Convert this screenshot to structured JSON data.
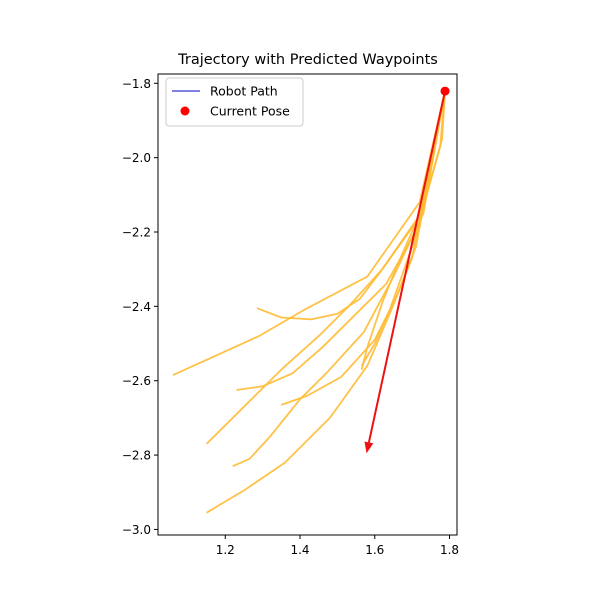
{
  "chart_data": {
    "type": "line",
    "title": "Trajectory with Predicted Waypoints",
    "xlabel": "",
    "ylabel": "",
    "xlim": [
      1.02,
      1.82
    ],
    "ylim": [
      -3.015,
      -1.775
    ],
    "xticks": [
      1.2,
      1.4,
      1.6,
      1.8
    ],
    "xtick_labels": [
      "1.2",
      "1.4",
      "1.6",
      "1.8"
    ],
    "yticks": [
      -1.8,
      -2.0,
      -2.2,
      -2.4,
      -2.6,
      -2.8,
      -3.0
    ],
    "ytick_labels": [
      "−1.8",
      "−2.0",
      "−2.2",
      "−2.4",
      "−2.6",
      "−2.8",
      "−3.0"
    ],
    "grid": false,
    "legend": {
      "placement": "top-left",
      "entries": [
        {
          "label": "Robot Path",
          "marker": "line",
          "color": "#0000cc"
        },
        {
          "label": "Current Pose",
          "marker": "dot",
          "color": "#ff0000"
        }
      ]
    },
    "current_pose": {
      "x": 1.788,
      "y": -1.821,
      "color": "#ff0000"
    },
    "heading_arrow": {
      "from": [
        1.788,
        -1.821
      ],
      "to": [
        1.578,
        -2.795
      ],
      "color": "#ee1111"
    },
    "waypoint_color": "#ffbb33",
    "predicted_waypoints": [
      {
        "points": [
          [
            1.788,
            -1.821
          ],
          [
            1.72,
            -2.12
          ],
          [
            1.58,
            -2.32
          ],
          [
            1.41,
            -2.41
          ],
          [
            1.29,
            -2.48
          ],
          [
            1.06,
            -2.585
          ]
        ]
      },
      {
        "points": [
          [
            1.788,
            -1.821
          ],
          [
            1.73,
            -2.14
          ],
          [
            1.62,
            -2.3
          ],
          [
            1.56,
            -2.38
          ],
          [
            1.5,
            -2.42
          ],
          [
            1.43,
            -2.435
          ],
          [
            1.35,
            -2.43
          ],
          [
            1.285,
            -2.405
          ]
        ]
      },
      {
        "points": [
          [
            1.788,
            -1.821
          ],
          [
            1.72,
            -2.16
          ],
          [
            1.62,
            -2.3
          ],
          [
            1.53,
            -2.4
          ],
          [
            1.45,
            -2.48
          ],
          [
            1.35,
            -2.57
          ],
          [
            1.25,
            -2.67
          ],
          [
            1.15,
            -2.77
          ]
        ]
      },
      {
        "points": [
          [
            1.788,
            -1.821
          ],
          [
            1.72,
            -2.18
          ],
          [
            1.63,
            -2.34
          ],
          [
            1.55,
            -2.42
          ],
          [
            1.46,
            -2.51
          ],
          [
            1.38,
            -2.58
          ],
          [
            1.3,
            -2.615
          ],
          [
            1.23,
            -2.625
          ]
        ]
      },
      {
        "points": [
          [
            1.788,
            -1.821
          ],
          [
            1.73,
            -2.15
          ],
          [
            1.65,
            -2.32
          ],
          [
            1.57,
            -2.47
          ],
          [
            1.47,
            -2.58
          ],
          [
            1.4,
            -2.65
          ],
          [
            1.32,
            -2.75
          ],
          [
            1.265,
            -2.81
          ],
          [
            1.22,
            -2.83
          ]
        ]
      },
      {
        "points": [
          [
            1.788,
            -1.821
          ],
          [
            1.71,
            -2.24
          ],
          [
            1.66,
            -2.37
          ],
          [
            1.6,
            -2.49
          ],
          [
            1.51,
            -2.59
          ],
          [
            1.42,
            -2.64
          ],
          [
            1.35,
            -2.665
          ]
        ]
      },
      {
        "points": [
          [
            1.788,
            -1.821
          ],
          [
            1.7,
            -2.27
          ],
          [
            1.64,
            -2.42
          ],
          [
            1.58,
            -2.56
          ],
          [
            1.48,
            -2.7
          ],
          [
            1.36,
            -2.82
          ],
          [
            1.25,
            -2.895
          ],
          [
            1.15,
            -2.955
          ]
        ]
      },
      {
        "points": [
          [
            1.788,
            -1.821
          ],
          [
            1.78,
            -1.95
          ],
          [
            1.73,
            -2.13
          ],
          [
            1.66,
            -2.29
          ],
          [
            1.62,
            -2.39
          ],
          [
            1.58,
            -2.51
          ],
          [
            1.565,
            -2.57
          ]
        ]
      },
      {
        "points": [
          [
            1.788,
            -1.821
          ],
          [
            1.775,
            -1.97
          ],
          [
            1.7,
            -2.24
          ],
          [
            1.64,
            -2.41
          ],
          [
            1.6,
            -2.5
          ],
          [
            1.565,
            -2.56
          ]
        ]
      }
    ]
  }
}
